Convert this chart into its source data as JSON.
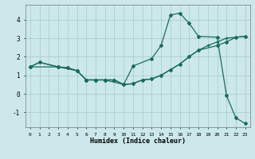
{
  "xlabel": "Humidex (Indice chaleur)",
  "xlim": [
    -0.5,
    23.5
  ],
  "ylim": [
    -1.8,
    4.8
  ],
  "xticks": [
    0,
    1,
    2,
    3,
    4,
    5,
    6,
    7,
    8,
    9,
    10,
    11,
    12,
    13,
    14,
    15,
    16,
    17,
    18,
    19,
    20,
    21,
    22,
    23
  ],
  "yticks": [
    -1,
    0,
    1,
    2,
    3,
    4
  ],
  "bg_color": "#cce8ea",
  "grid_color": "#aacfd2",
  "line_color": "#1a6b5a",
  "line1_x": [
    0,
    1,
    3,
    4,
    5,
    6,
    7,
    8,
    10,
    11,
    13,
    14,
    15,
    16,
    17,
    18,
    20,
    21,
    22,
    23
  ],
  "line1_y": [
    1.45,
    1.7,
    1.45,
    1.4,
    1.25,
    0.75,
    0.75,
    0.75,
    0.5,
    1.5,
    1.9,
    2.6,
    4.25,
    4.35,
    3.8,
    3.1,
    3.05,
    -0.1,
    -1.3,
    -1.6
  ],
  "line2_x": [
    0,
    3,
    5,
    6,
    7,
    8,
    9,
    10,
    11,
    12,
    13,
    14,
    15,
    16,
    17,
    18,
    20,
    21,
    22,
    23
  ],
  "line2_y": [
    1.45,
    1.45,
    1.25,
    0.75,
    0.75,
    0.75,
    0.75,
    0.5,
    0.55,
    0.75,
    0.8,
    1.0,
    1.3,
    1.6,
    2.0,
    2.35,
    2.6,
    2.8,
    3.05,
    3.1
  ],
  "line3_x": [
    0,
    1,
    3,
    4,
    5,
    6,
    7,
    8,
    9,
    10,
    11,
    12,
    13,
    14,
    15,
    16,
    17,
    18,
    19,
    20,
    21,
    22,
    23
  ],
  "line3_y": [
    1.45,
    1.7,
    1.45,
    1.4,
    1.25,
    0.75,
    0.75,
    0.75,
    0.75,
    0.5,
    0.55,
    0.75,
    0.8,
    1.0,
    1.3,
    1.6,
    2.0,
    2.35,
    2.6,
    2.8,
    3.0,
    3.05,
    3.1
  ]
}
